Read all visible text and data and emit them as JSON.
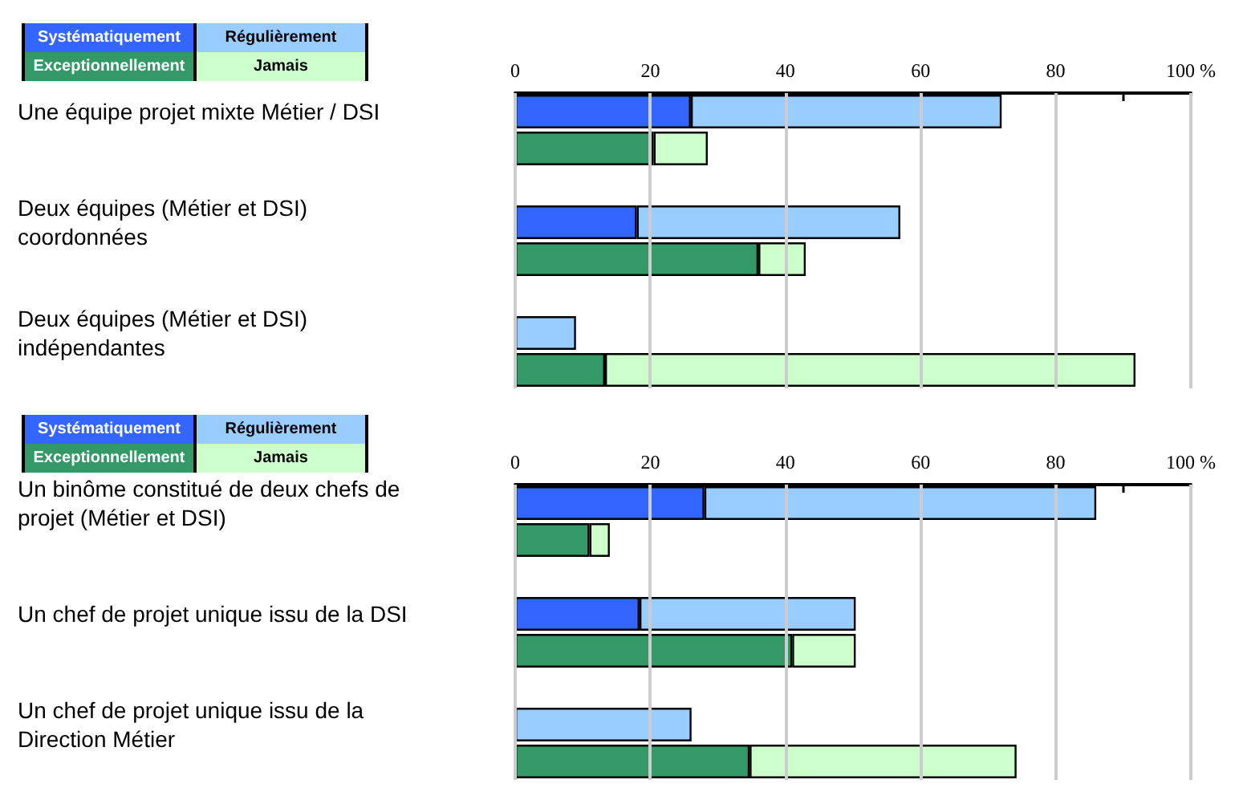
{
  "chart_data": [
    {
      "type": "bar",
      "orientation": "horizontal",
      "stacked": true,
      "legend": "top left",
      "grid": "x",
      "categories": [
        "Une équipe projet mixte Métier / DSI",
        null,
        null,
        "Deux équipes (Métier et DSI) coordonnées",
        null,
        null,
        "Deux équipes (Métier et DSI) indépendantes",
        null
      ],
      "series": [
        {
          "name": "Systématiquement",
          "color": "#3366ff",
          "values": [
            26,
            null,
            null,
            18,
            null,
            null,
            0,
            null
          ]
        },
        {
          "name": "Régulièrement",
          "color": "#99ccff",
          "values": [
            46,
            null,
            null,
            39,
            null,
            null,
            9,
            null
          ]
        },
        {
          "name": "Exceptionnellement",
          "color": "#339966",
          "values": [
            null,
            20.5,
            null,
            null,
            36,
            null,
            null,
            13.3
          ]
        },
        {
          "name": "Jamais",
          "color": "#ccffcc",
          "values": [
            null,
            8,
            null,
            null,
            7,
            null,
            null,
            78.5
          ]
        }
      ],
      "xlim": [
        0,
        100
      ],
      "xticks": [
        0,
        {
          "value": 10,
          "label": null
        },
        20,
        {
          "value": 30,
          "label": null
        },
        40,
        {
          "value": 50,
          "label": null
        },
        60,
        {
          "value": 70,
          "label": null
        },
        80,
        {
          "value": 90,
          "label": null
        },
        {
          "value": 100,
          "label": "100 %"
        }
      ]
    },
    {
      "type": "bar",
      "orientation": "horizontal",
      "stacked": true,
      "legend": "top left",
      "grid": "x",
      "categories": [
        "Un binôme constitué de deux chefs de projet (Métier et DSI)",
        null,
        null,
        "Un chef de projet unique issu de la DSI",
        null,
        null,
        "Un chef de projet unique issu de la Direction Métier",
        null
      ],
      "series": [
        {
          "name": "Systématiquement",
          "color": "#3366ff",
          "values": [
            28,
            null,
            null,
            18.4,
            null,
            null,
            0,
            null
          ]
        },
        {
          "name": "Régulièrement",
          "color": "#99ccff",
          "values": [
            58,
            null,
            null,
            32,
            null,
            null,
            26.1,
            null
          ]
        },
        {
          "name": "Exceptionnellement",
          "color": "#339966",
          "values": [
            null,
            11,
            null,
            null,
            41,
            null,
            null,
            34.7
          ]
        },
        {
          "name": "Jamais",
          "color": "#ccffcc",
          "values": [
            null,
            3,
            null,
            null,
            9.4,
            null,
            null,
            39.5
          ]
        }
      ],
      "xlim": [
        0,
        100
      ],
      "xticks": [
        0,
        {
          "value": 10,
          "label": null
        },
        20,
        {
          "value": 30,
          "label": null
        },
        40,
        {
          "value": 50,
          "label": null
        },
        60,
        {
          "value": 70,
          "label": null
        },
        80,
        {
          "value": 90,
          "label": null
        },
        {
          "value": 100,
          "label": "100 %"
        }
      ]
    }
  ]
}
